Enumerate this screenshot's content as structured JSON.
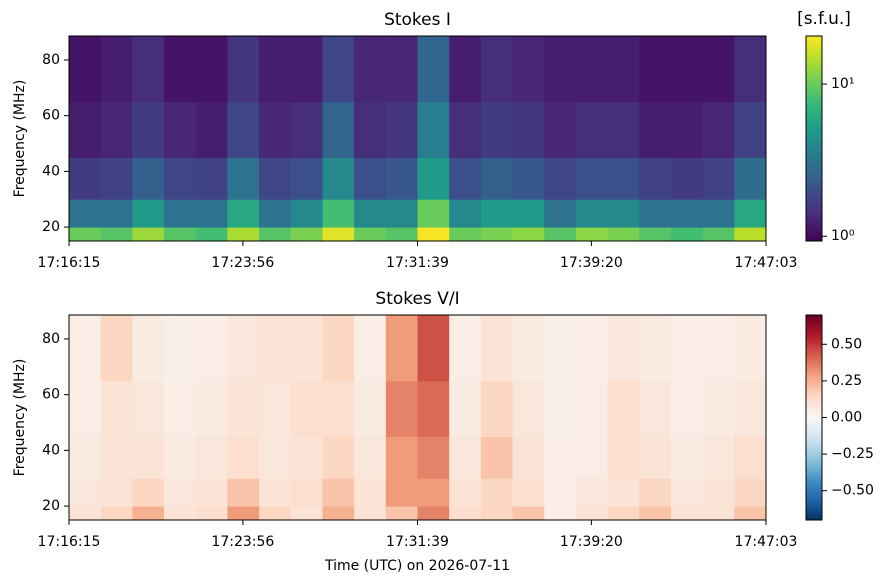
{
  "chart_data": [
    {
      "type": "heatmap",
      "title": "Stokes I",
      "ylabel": "Frequency (MHz)",
      "x_edges": [
        0,
        84,
        168,
        252,
        336,
        420,
        504,
        588,
        672,
        756,
        840,
        924,
        1008,
        1092,
        1176,
        1260,
        1344,
        1428,
        1512,
        1596,
        1680,
        1764,
        1848
      ],
      "y_edges": [
        15,
        20,
        30,
        45,
        65,
        88.6
      ],
      "xlim": [
        0,
        1848
      ],
      "ylim": [
        15,
        88.6
      ],
      "xticks": [
        {
          "value": 0,
          "label": "17:16:15"
        },
        {
          "value": 461,
          "label": "17:23:56"
        },
        {
          "value": 924,
          "label": "17:31:39"
        },
        {
          "value": 1385,
          "label": "17:39:20"
        },
        {
          "value": 1848,
          "label": "17:47:03"
        }
      ],
      "yticks": [
        20,
        40,
        60,
        80
      ],
      "z": [
        [
          10,
          9,
          13,
          9,
          8,
          14,
          9,
          11,
          18,
          10,
          9,
          20,
          10,
          11,
          12,
          9,
          12,
          11,
          9,
          8,
          9,
          15
        ],
        [
          3,
          3,
          5,
          3,
          3,
          6,
          3,
          4,
          8,
          4,
          4,
          10,
          4,
          5,
          5,
          3,
          4,
          4,
          3,
          3,
          3,
          6
        ],
        [
          1.6,
          1.7,
          2.4,
          1.8,
          1.7,
          3,
          1.8,
          2,
          4,
          2,
          2.2,
          5,
          2,
          2.4,
          2.2,
          1.8,
          2,
          2,
          1.7,
          1.6,
          1.7,
          2.8
        ],
        [
          1.2,
          1.3,
          1.6,
          1.3,
          1.2,
          1.8,
          1.3,
          1.4,
          2.5,
          1.4,
          1.5,
          3.5,
          1.4,
          1.6,
          1.5,
          1.3,
          1.4,
          1.4,
          1.2,
          1.2,
          1.3,
          1.7
        ],
        [
          1.1,
          1.2,
          1.4,
          1.1,
          1.1,
          1.5,
          1.2,
          1.2,
          1.8,
          1.3,
          1.3,
          2.6,
          1.2,
          1.4,
          1.3,
          1.2,
          1.2,
          1.2,
          1.1,
          1.1,
          1.1,
          1.4
        ]
      ],
      "colorbar": {
        "label": "[s.f.u.]",
        "colormap": "viridis",
        "log": true,
        "lim": [
          0.93,
          20.7
        ],
        "ticks": [
          {
            "value": 1,
            "label": "10⁰"
          },
          {
            "value": 10,
            "label": "10¹"
          }
        ]
      }
    },
    {
      "type": "heatmap",
      "title": "Stokes V/I",
      "ylabel": "Frequency (MHz)",
      "xlabel": "Time (UTC) on 2026-07-11",
      "x_edges": [
        0,
        84,
        168,
        252,
        336,
        420,
        504,
        588,
        672,
        756,
        840,
        924,
        1008,
        1092,
        1176,
        1260,
        1344,
        1428,
        1512,
        1596,
        1680,
        1764,
        1848
      ],
      "y_edges": [
        15,
        20,
        30,
        45,
        65,
        88.6
      ],
      "xlim": [
        0,
        1848
      ],
      "ylim": [
        15,
        88.6
      ],
      "xticks": [
        {
          "value": 0,
          "label": "17:16:15"
        },
        {
          "value": 461,
          "label": "17:23:56"
        },
        {
          "value": 924,
          "label": "17:31:39"
        },
        {
          "value": 1385,
          "label": "17:39:20"
        },
        {
          "value": 1848,
          "label": "17:47:03"
        }
      ],
      "yticks": [
        20,
        40,
        60,
        80
      ],
      "z": [
        [
          0.1,
          0.15,
          0.25,
          0.1,
          0.12,
          0.3,
          0.15,
          0.1,
          0.25,
          0.1,
          0.2,
          0.35,
          0.12,
          0.15,
          0.2,
          0.05,
          0.1,
          0.15,
          0.2,
          0.1,
          0.1,
          0.2
        ],
        [
          0.08,
          0.1,
          0.15,
          0.08,
          0.1,
          0.2,
          0.1,
          0.12,
          0.2,
          0.1,
          0.3,
          0.3,
          0.1,
          0.15,
          0.12,
          0.05,
          0.08,
          0.1,
          0.15,
          0.08,
          0.1,
          0.15
        ],
        [
          0.06,
          0.1,
          0.1,
          0.06,
          0.08,
          0.12,
          0.08,
          0.1,
          0.15,
          0.08,
          0.3,
          0.35,
          0.08,
          0.2,
          0.1,
          0.05,
          0.05,
          0.12,
          0.1,
          0.06,
          0.08,
          0.12
        ],
        [
          0.05,
          0.1,
          0.08,
          0.05,
          0.06,
          0.1,
          0.08,
          0.12,
          0.12,
          0.06,
          0.35,
          0.4,
          0.06,
          0.15,
          0.08,
          0.04,
          0.05,
          0.12,
          0.08,
          0.05,
          0.06,
          0.08
        ],
        [
          0.05,
          0.15,
          0.06,
          0.04,
          0.05,
          0.08,
          0.1,
          0.1,
          0.15,
          0.05,
          0.3,
          0.45,
          0.05,
          0.1,
          0.06,
          0.04,
          0.05,
          0.08,
          0.06,
          0.05,
          0.05,
          0.06
        ]
      ],
      "colorbar": {
        "colormap": "RdBu_r",
        "log": false,
        "lim": [
          -0.7,
          0.7
        ],
        "ticks": [
          {
            "value": 0.5,
            "label": "0.50"
          },
          {
            "value": 0.25,
            "label": "0.25"
          },
          {
            "value": 0,
            "label": "0.00"
          },
          {
            "value": -0.25,
            "label": "−0.25"
          },
          {
            "value": -0.5,
            "label": "−0.50"
          }
        ]
      }
    }
  ]
}
